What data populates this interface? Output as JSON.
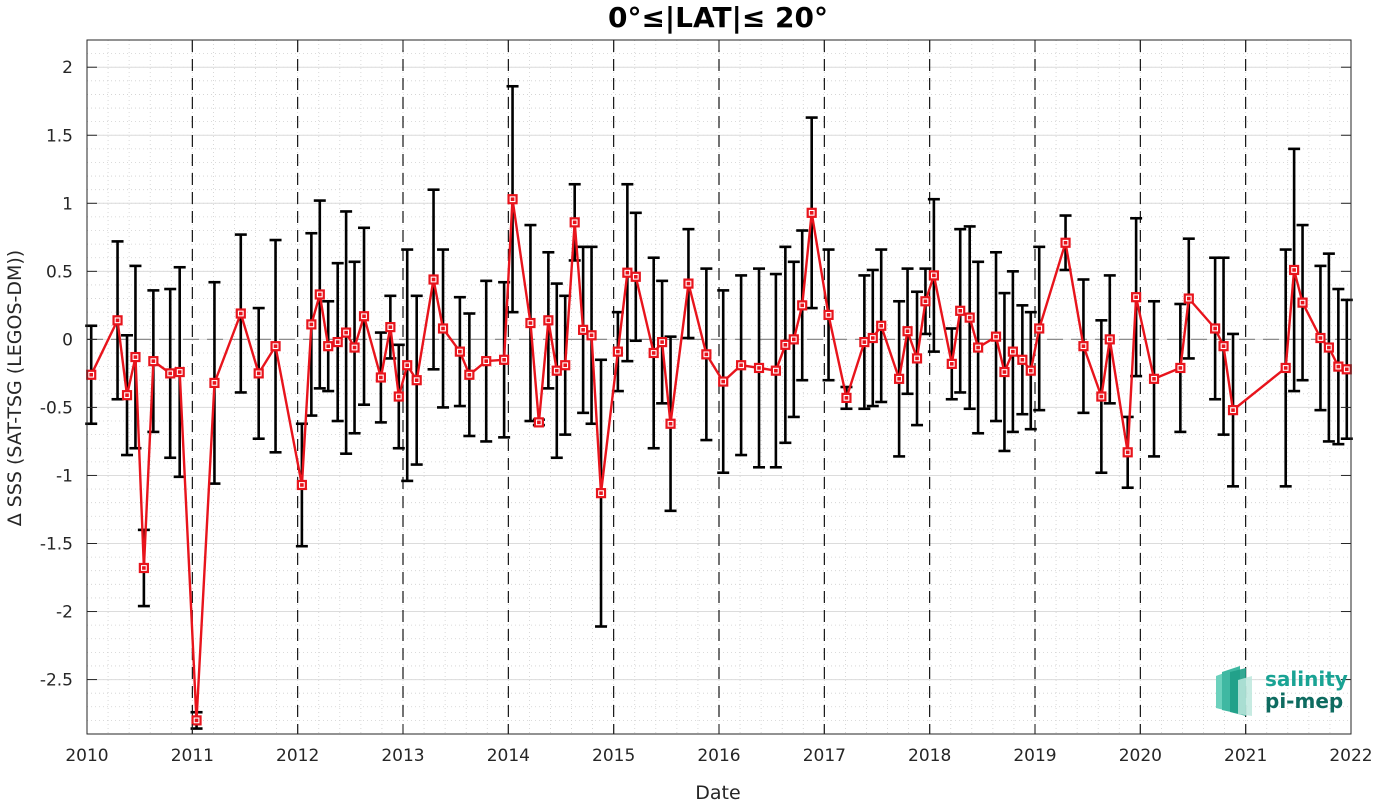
{
  "chart_data": {
    "type": "line",
    "title": "0°≤|LAT|≤ 20°",
    "xlabel": "Date",
    "ylabel": "Δ SSS (SAT-TSG (LEGOS-DM))",
    "xlim": [
      2010,
      2022
    ],
    "ylim": [
      -2.9,
      2.2
    ],
    "x_ticks": [
      "2010",
      "2011",
      "2012",
      "2013",
      "2014",
      "2015",
      "2016",
      "2017",
      "2018",
      "2019",
      "2020",
      "2021",
      "2022"
    ],
    "y_ticks": [
      2,
      1.5,
      1,
      0.5,
      0,
      -0.5,
      -1,
      -1.5,
      -2,
      -2.5
    ],
    "y_tick_labels": [
      "2",
      "1.5",
      "1",
      "0.5",
      "0",
      "-0.5",
      "-1",
      "-1.5",
      "-2",
      "-2.5"
    ],
    "grid": true,
    "minor_grid": true,
    "zero_line": "dashed gray",
    "year_lines": "dashed black",
    "series": [
      {
        "color": "#e8141c",
        "marker": "square",
        "x": [
          2010.04,
          2010.29,
          2010.38,
          2010.46,
          2010.54,
          2010.63,
          2010.79,
          2010.88,
          2011.04,
          2011.21,
          2011.46,
          2011.63,
          2011.79,
          2012.04,
          2012.13,
          2012.21,
          2012.29,
          2012.38,
          2012.46,
          2012.54,
          2012.63,
          2012.79,
          2012.88,
          2012.96,
          2013.04,
          2013.13,
          2013.29,
          2013.38,
          2013.54,
          2013.63,
          2013.79,
          2013.96,
          2014.04,
          2014.21,
          2014.29,
          2014.38,
          2014.46,
          2014.54,
          2014.63,
          2014.71,
          2014.79,
          2014.88,
          2015.04,
          2015.13,
          2015.21,
          2015.38,
          2015.46,
          2015.54,
          2015.71,
          2015.88,
          2016.04,
          2016.21,
          2016.38,
          2016.54,
          2016.63,
          2016.71,
          2016.79,
          2016.88,
          2017.04,
          2017.21,
          2017.38,
          2017.46,
          2017.54,
          2017.71,
          2017.79,
          2017.88,
          2017.96,
          2018.04,
          2018.21,
          2018.29,
          2018.38,
          2018.46,
          2018.63,
          2018.71,
          2018.79,
          2018.88,
          2018.96,
          2019.04,
          2019.29,
          2019.46,
          2019.63,
          2019.71,
          2019.88,
          2019.96,
          2020.13,
          2020.38,
          2020.46,
          2020.71,
          2020.79,
          2020.88,
          2021.38,
          2021.46,
          2021.54,
          2021.71,
          2021.79,
          2021.88,
          2021.96
        ],
        "y": [
          -0.26,
          0.14,
          -0.41,
          -0.13,
          -1.68,
          -0.16,
          -0.25,
          -0.24,
          -2.8,
          -0.32,
          0.19,
          -0.25,
          -0.05,
          -1.07,
          0.11,
          0.33,
          -0.05,
          -0.02,
          0.05,
          -0.06,
          0.17,
          -0.28,
          0.09,
          -0.42,
          -0.19,
          -0.3,
          0.44,
          0.08,
          -0.09,
          -0.26,
          -0.16,
          -0.15,
          1.03,
          0.12,
          -0.61,
          0.14,
          -0.23,
          -0.19,
          0.86,
          0.07,
          0.03,
          -1.13,
          -0.09,
          0.49,
          0.46,
          -0.1,
          -0.02,
          -0.62,
          0.41,
          -0.11,
          -0.31,
          -0.19,
          -0.21,
          -0.23,
          -0.04,
          0.0,
          0.25,
          0.93,
          0.18,
          -0.43,
          -0.02,
          0.01,
          0.1,
          -0.29,
          0.06,
          -0.14,
          0.28,
          0.47,
          -0.18,
          0.21,
          0.16,
          -0.06,
          0.02,
          -0.24,
          -0.09,
          -0.15,
          -0.23,
          0.08,
          0.71,
          -0.05,
          -0.42,
          0.0,
          -0.83,
          0.31,
          -0.29,
          -0.21,
          0.3,
          0.08,
          -0.05,
          -0.52,
          -0.21,
          0.51,
          0.27,
          0.01,
          -0.06,
          -0.2,
          -0.22
        ],
        "error": [
          0.36,
          0.58,
          0.44,
          0.67,
          0.28,
          0.52,
          0.62,
          0.77,
          0.06,
          0.74,
          0.58,
          0.48,
          0.78,
          0.45,
          0.67,
          0.69,
          0.33,
          0.58,
          0.89,
          0.63,
          0.65,
          0.33,
          0.23,
          0.38,
          0.85,
          0.62,
          0.66,
          0.58,
          0.4,
          0.45,
          0.59,
          0.57,
          0.83,
          0.72,
          0.02,
          0.5,
          0.64,
          0.51,
          0.28,
          0.61,
          0.65,
          0.98,
          0.29,
          0.65,
          0.47,
          0.7,
          0.45,
          0.64,
          0.4,
          0.63,
          0.67,
          0.66,
          0.73,
          0.71,
          0.72,
          0.57,
          0.55,
          0.7,
          0.48,
          0.08,
          0.49,
          0.5,
          0.56,
          0.57,
          0.46,
          0.49,
          0.24,
          0.56,
          0.26,
          0.6,
          0.67,
          0.63,
          0.62,
          0.58,
          0.59,
          0.4,
          0.43,
          0.6,
          0.2,
          0.49,
          0.56,
          0.47,
          0.26,
          0.58,
          0.57,
          0.47,
          0.44,
          0.52,
          0.65,
          0.56,
          0.87,
          0.89,
          0.57,
          0.53,
          0.69,
          0.57,
          0.51
        ]
      }
    ]
  },
  "logo": {
    "line1": "salinity",
    "line2": "pi-mep"
  },
  "colors": {
    "series": "#e8141c",
    "error_bars": "#000000",
    "logo_text": "#1aa394",
    "logo_dark": "#0e6b60"
  }
}
